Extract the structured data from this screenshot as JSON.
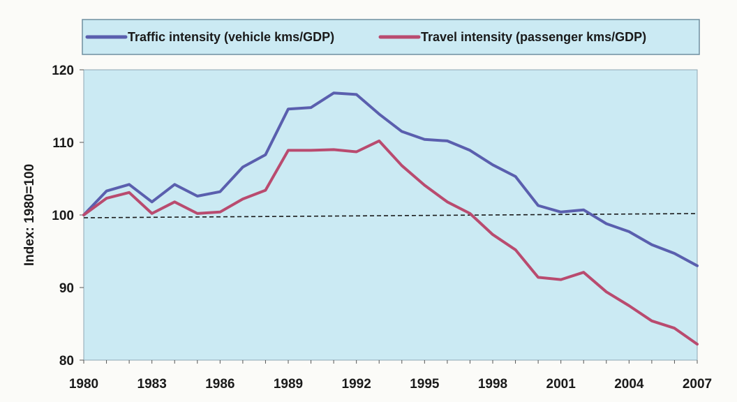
{
  "chart_data": {
    "type": "line",
    "title": "",
    "xlabel": "",
    "ylabel": "Index: 1980=100",
    "x": [
      1980,
      1981,
      1982,
      1983,
      1984,
      1985,
      1986,
      1987,
      1988,
      1989,
      1990,
      1991,
      1992,
      1993,
      1994,
      1995,
      1996,
      1997,
      1998,
      1999,
      2000,
      2001,
      2002,
      2003,
      2004,
      2005,
      2006,
      2007
    ],
    "xticks": [
      "1980",
      "1983",
      "1986",
      "1989",
      "1992",
      "1995",
      "1998",
      "2001",
      "2004",
      "2007"
    ],
    "yticks": [
      "80",
      "90",
      "100",
      "110",
      "120"
    ],
    "ylim": [
      80,
      120
    ],
    "xlim": [
      1980,
      2007
    ],
    "grid": false,
    "legend_position": "top",
    "series": [
      {
        "name": "Traffic intensity (vehicle kms/GDP)",
        "color": "#5a5fae",
        "values": [
          100,
          103.3,
          104.2,
          101.8,
          104.2,
          102.6,
          103.2,
          106.6,
          108.3,
          114.6,
          114.8,
          116.8,
          116.6,
          113.9,
          111.5,
          110.4,
          110.2,
          108.9,
          106.9,
          105.3,
          101.3,
          100.4,
          100.7,
          98.8,
          97.7,
          95.9,
          94.7,
          93.0
        ]
      },
      {
        "name": "Travel intensity (passenger kms/GDP)",
        "color": "#b94b6f",
        "values": [
          100,
          102.3,
          103.1,
          100.2,
          101.8,
          100.2,
          100.4,
          102.2,
          103.4,
          108.9,
          108.9,
          109.0,
          108.7,
          110.2,
          106.8,
          104.1,
          101.8,
          100.2,
          97.3,
          95.2,
          91.4,
          91.1,
          92.1,
          89.4,
          87.5,
          85.4,
          84.4,
          82.2
        ]
      }
    ],
    "reference_line": {
      "value": 100,
      "style": "dashed",
      "color": "#1a1a1a"
    }
  }
}
